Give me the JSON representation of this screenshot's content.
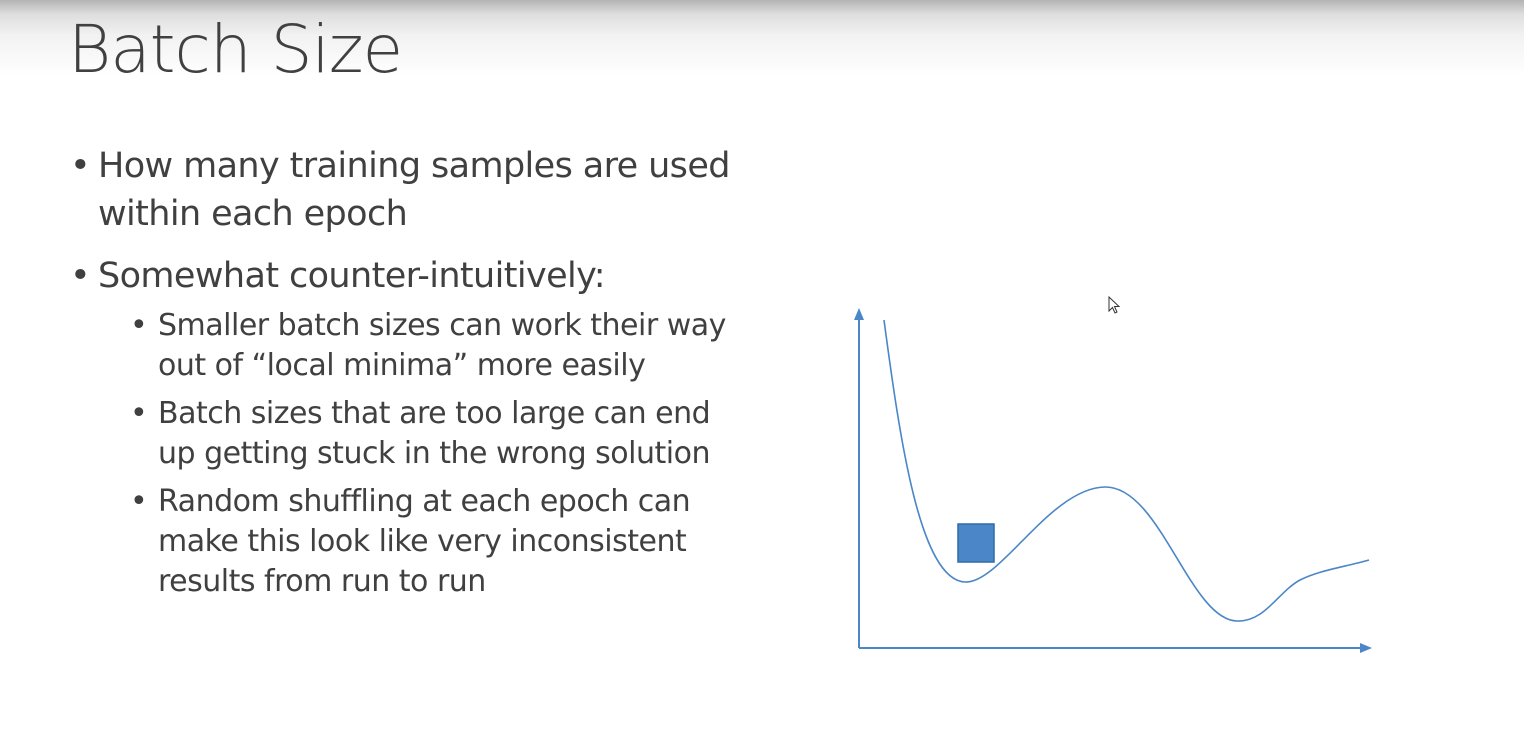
{
  "slide": {
    "title": "Batch Size",
    "bullets": [
      {
        "text": "How many training samples are used within each epoch",
        "sub": []
      },
      {
        "text": "Somewhat counter-intuitively:",
        "sub": [
          "Smaller batch sizes can work their way out of “local minima” more easily",
          "Batch sizes that are too large can end up getting stuck in the wrong solution",
          "Random shuffling at each epoch can make this look like very inconsistent results from run to run"
        ]
      }
    ],
    "bullet_glyph": "•"
  },
  "figure": {
    "axis_color": "#4a86c8",
    "curve_color": "#4a86c8",
    "marker_color": "#4a86c8",
    "marker_border": "#2f6aa8"
  },
  "pointer": {
    "icon": "mouse-pointer-icon"
  }
}
